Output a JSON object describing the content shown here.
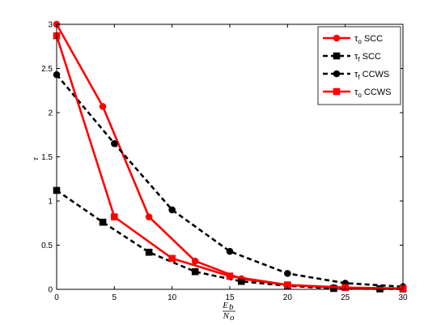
{
  "chart_data": {
    "type": "line",
    "title": "",
    "xlabel_num": "E",
    "xlabel_num_sub": "b",
    "xlabel_den": "N",
    "xlabel_den_sub": "o",
    "ylabel": "τ",
    "xlim": [
      0,
      30
    ],
    "ylim": [
      0,
      3
    ],
    "xticks": [
      0,
      5,
      10,
      15,
      20,
      25,
      30
    ],
    "yticks": [
      0,
      0.5,
      1,
      1.5,
      2,
      2.5,
      3
    ],
    "ytick_labels": [
      "0",
      "0.5",
      "1",
      "1.5",
      "2",
      "2.5",
      "3"
    ],
    "grid": false,
    "legend_position": "top-right",
    "series": [
      {
        "name_main": "τ",
        "name_sub": "o",
        "name_rest": " SCC",
        "color": "#ff0000",
        "dash": "solid",
        "marker": "circle",
        "filled": true,
        "x": [
          0,
          4,
          8,
          12,
          16,
          20,
          24,
          28,
          30
        ],
        "y": [
          3.0,
          2.07,
          0.82,
          0.32,
          0.12,
          0.05,
          0.02,
          0.01,
          0.01
        ]
      },
      {
        "name_main": "τ",
        "name_sub": "f",
        "name_rest": " SCC",
        "color": "#000000",
        "dash": "dashed",
        "marker": "square",
        "filled": true,
        "x": [
          0,
          4,
          8,
          12,
          16,
          20,
          24,
          28,
          30
        ],
        "y": [
          1.12,
          0.76,
          0.42,
          0.2,
          0.09,
          0.04,
          0.01,
          0.005,
          0.005
        ]
      },
      {
        "name_main": "τ",
        "name_sub": "f",
        "name_rest": " CCWS",
        "color": "#000000",
        "dash": "dashed",
        "marker": "circle",
        "filled": true,
        "x": [
          0,
          5,
          10,
          15,
          20,
          25,
          30
        ],
        "y": [
          2.43,
          1.65,
          0.9,
          0.43,
          0.18,
          0.07,
          0.03
        ]
      },
      {
        "name_main": "τ",
        "name_sub": "o",
        "name_rest": " CCWS",
        "color": "#ff0000",
        "dash": "solid",
        "marker": "square",
        "filled": true,
        "x": [
          0,
          5,
          10,
          15,
          20,
          25,
          30
        ],
        "y": [
          2.87,
          0.82,
          0.35,
          0.15,
          0.05,
          0.02,
          0.01
        ]
      }
    ]
  }
}
